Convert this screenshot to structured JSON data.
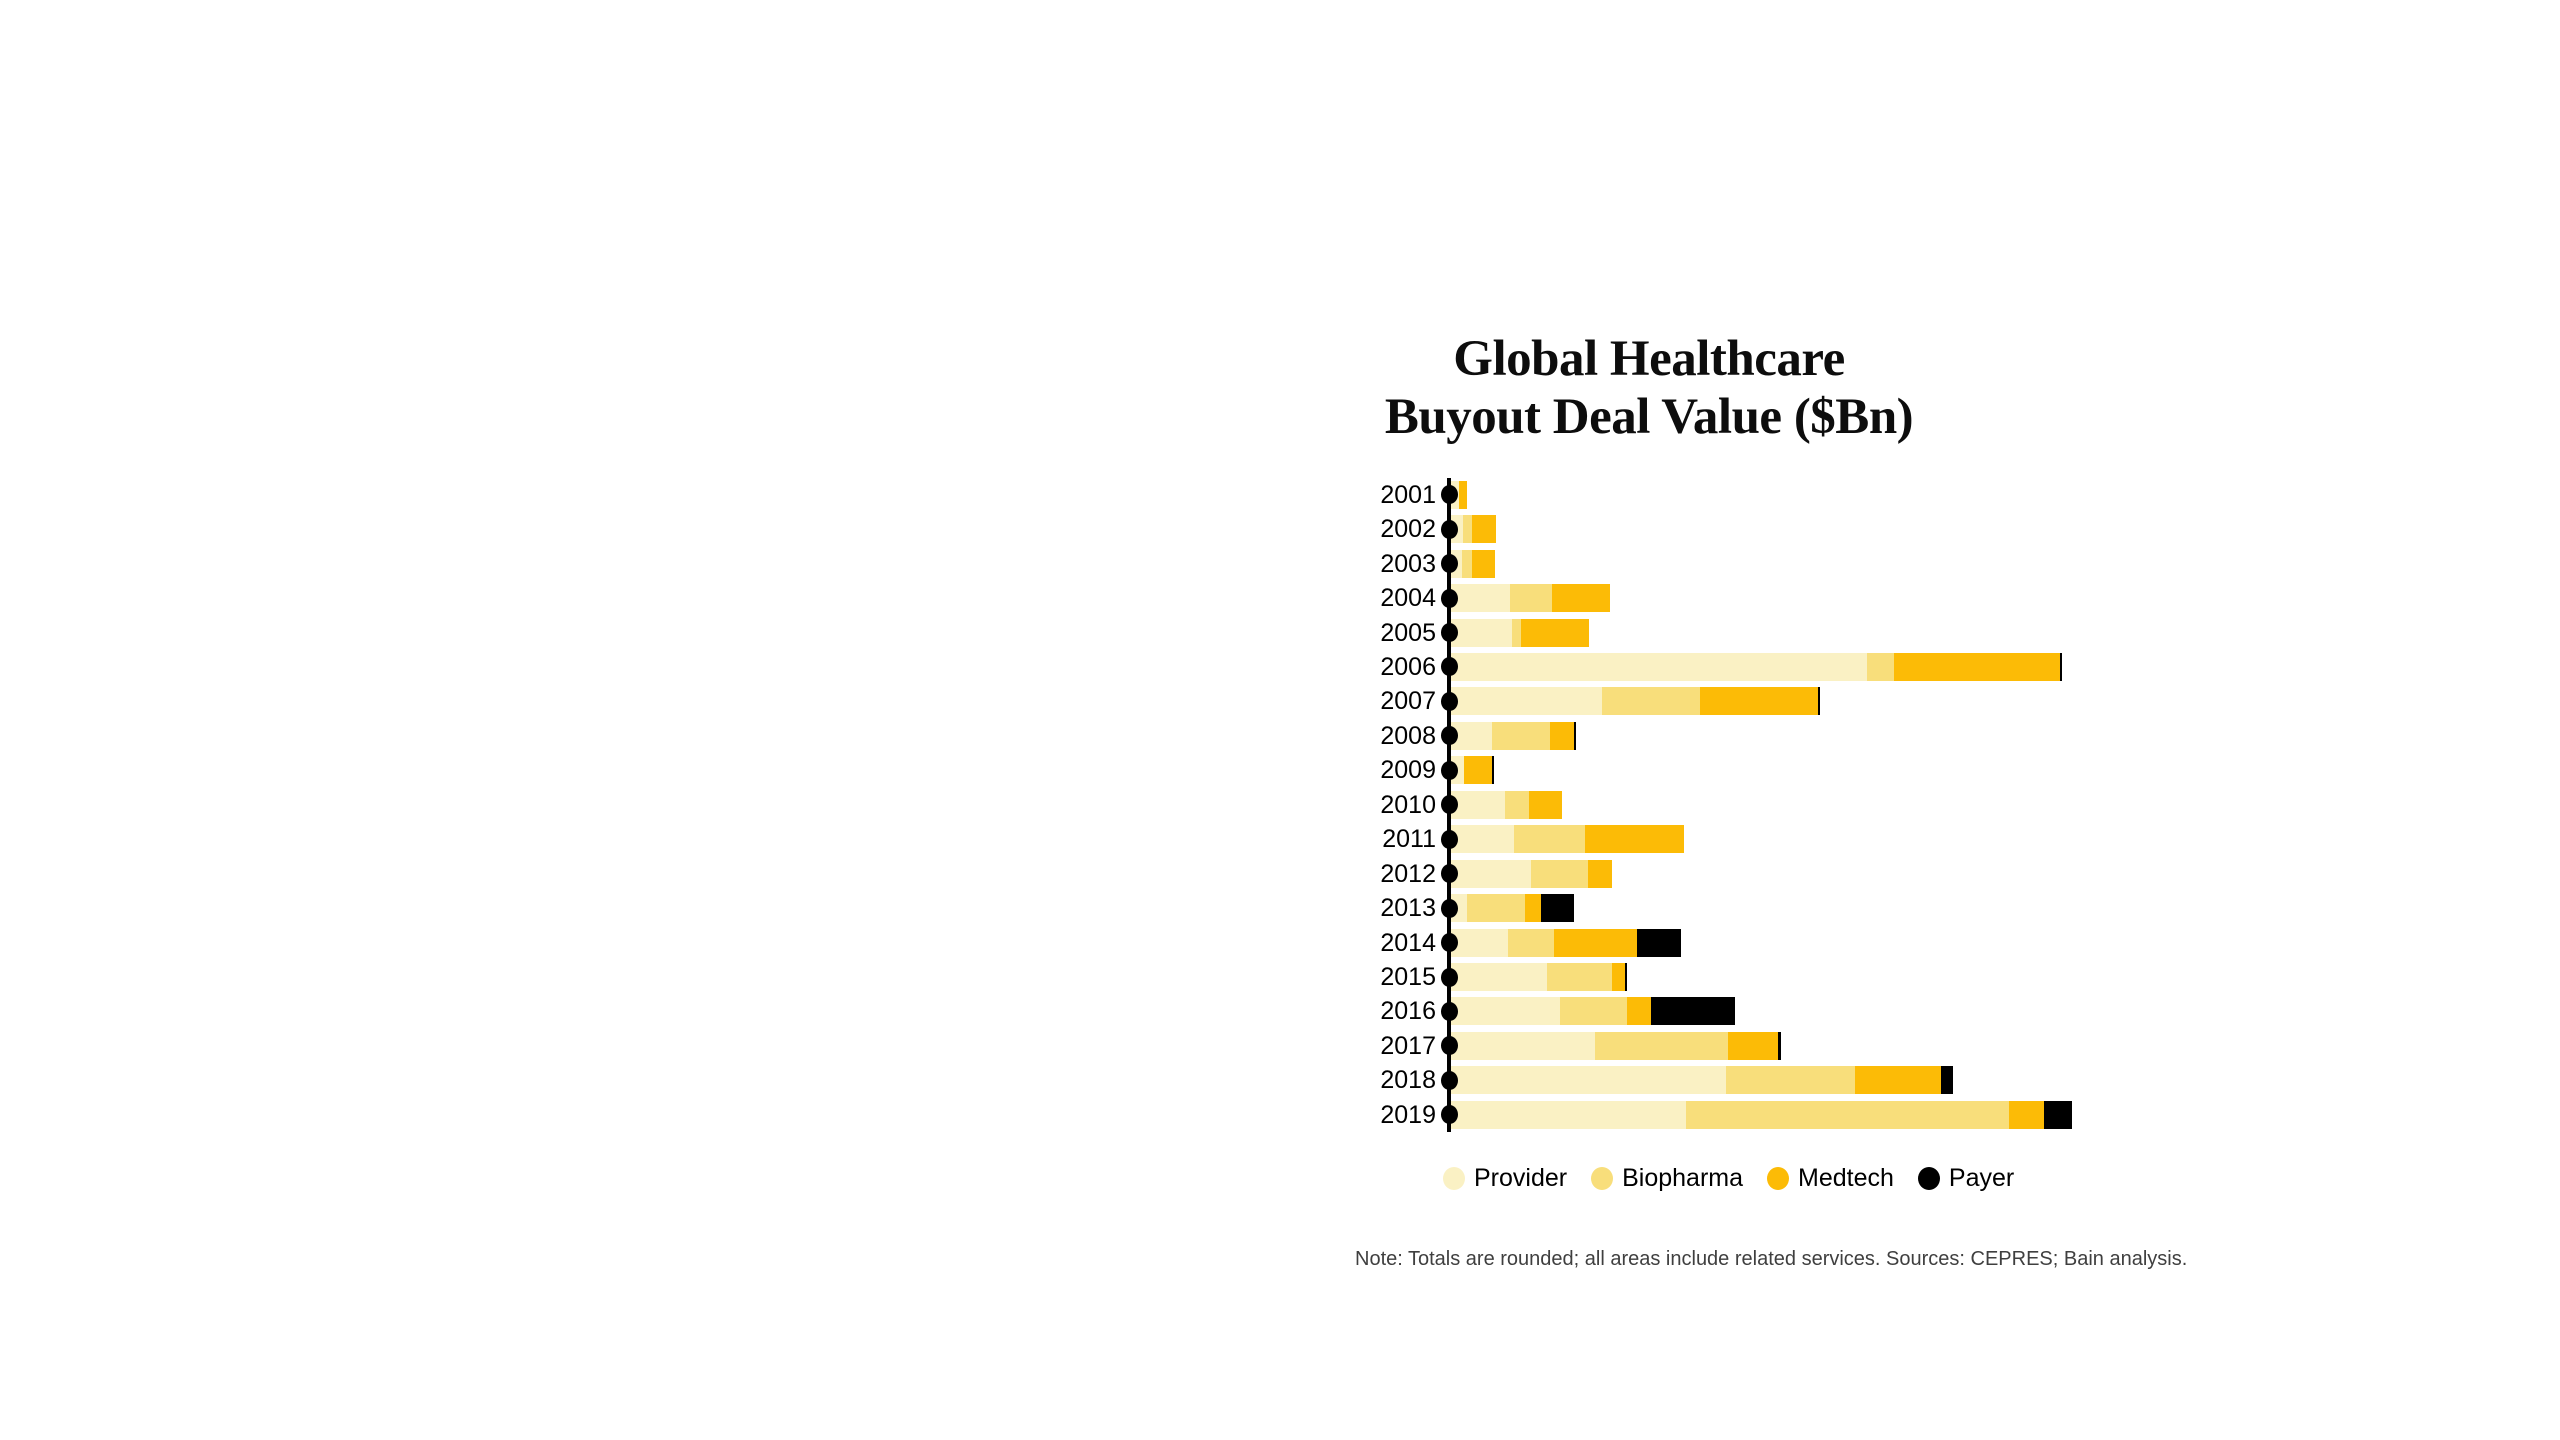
{
  "title": {
    "line1": "Global Healthcare",
    "line2": "Buyout Deal Value ($Bn)"
  },
  "legend": {
    "items": [
      {
        "label": "Provider",
        "color": "#FAF1C4"
      },
      {
        "label": "Biopharma",
        "color": "#F8DE7B"
      },
      {
        "label": "Medtech",
        "color": "#FCBB06"
      },
      {
        "label": "Payer",
        "color": "#000000"
      }
    ]
  },
  "note": "Note: Totals are rounded; all areas include related services. Sources: CEPRES; Bain analysis.",
  "chart_data": {
    "type": "bar",
    "orientation": "horizontal",
    "stacked": true,
    "title": "Global Healthcare Buyout Deal Value ($Bn)",
    "categories": [
      "2001",
      "2002",
      "2003",
      "2004",
      "2005",
      "2006",
      "2007",
      "2008",
      "2009",
      "2010",
      "2011",
      "2012",
      "2013",
      "2014",
      "2015",
      "2016",
      "2017",
      "2018",
      "2019"
    ],
    "series": [
      {
        "name": "Provider",
        "color": "#FAF1C4",
        "values": [
          1.0,
          1.5,
          1.4,
          7.5,
          7.7,
          52.9,
          19.2,
          5.2,
          1.7,
          6.9,
          8.0,
          10.2,
          2.0,
          7.3,
          12.2,
          13.9,
          18.3,
          34.9,
          29.8
        ]
      },
      {
        "name": "Biopharma",
        "color": "#F8DE7B",
        "values": [
          0,
          1.1,
          1.3,
          5.3,
          1.1,
          3.4,
          12.5,
          7.4,
          0,
          3.0,
          9.0,
          7.2,
          7.4,
          5.8,
          8.3,
          8.5,
          16.9,
          16.4,
          41.0
        ]
      },
      {
        "name": "Medtech",
        "color": "#FCBB06",
        "values": [
          1.0,
          3.0,
          2.9,
          7.4,
          8.6,
          21.1,
          15.0,
          3.0,
          3.5,
          4.2,
          12.6,
          3.1,
          2.0,
          10.5,
          1.7,
          3.0,
          6.4,
          10.9,
          4.5
        ]
      },
      {
        "name": "Payer",
        "color": "#000000",
        "values": [
          0,
          0,
          0,
          0,
          0,
          0.3,
          0.3,
          0.3,
          0.3,
          0,
          0,
          0,
          4.2,
          5.6,
          0.3,
          10.7,
          0.4,
          1.5,
          3.6
        ]
      }
    ],
    "totals_approx": [
      2,
      6,
      6,
      20,
      17,
      78,
      47,
      16,
      6,
      14,
      30,
      21,
      16,
      29,
      23,
      36,
      42,
      64,
      79
    ],
    "xlim": [
      0,
      80
    ],
    "x_axis_visible": false,
    "value_labels": false,
    "grid": false,
    "legend_position": "bottom",
    "axis_style": "vertical black line at x=0 with black point markers per category"
  }
}
